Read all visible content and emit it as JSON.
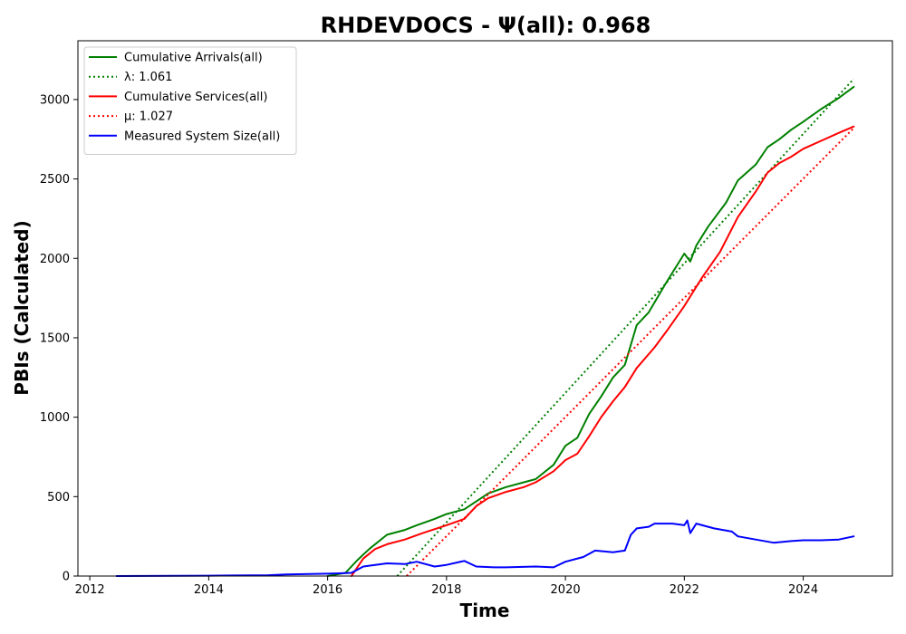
{
  "chart_data": {
    "type": "line",
    "title": "RHDEVDOCS -  Ψ(all): 0.968",
    "xlabel": "Time",
    "ylabel": "PBIs (Calculated)",
    "xlim": [
      2011.8,
      2025.5
    ],
    "ylim": [
      0,
      3370
    ],
    "xticks": [
      2012,
      2014,
      2016,
      2018,
      2020,
      2022,
      2024
    ],
    "xtick_labels": [
      "2012",
      "2014",
      "2016",
      "2018",
      "2020",
      "2022",
      "2024"
    ],
    "yticks": [
      0,
      500,
      1000,
      1500,
      2000,
      2500,
      3000
    ],
    "ytick_labels": [
      "0",
      "500",
      "1000",
      "1500",
      "2000",
      "2500",
      "3000"
    ],
    "grid": false,
    "legend_position": "top-left",
    "series": [
      {
        "name": "Cumulative Arrivals(all)",
        "color": "#008000",
        "style": "solid",
        "x": [
          2016.0,
          2016.3,
          2016.5,
          2016.7,
          2017.0,
          2017.3,
          2017.5,
          2017.8,
          2018.0,
          2018.3,
          2018.5,
          2018.7,
          2019.0,
          2019.3,
          2019.5,
          2019.8,
          2020.0,
          2020.2,
          2020.4,
          2020.6,
          2020.8,
          2021.0,
          2021.2,
          2021.4,
          2021.7,
          2022.0,
          2022.1,
          2022.2,
          2022.4,
          2022.7,
          2022.9,
          2023.2,
          2023.4,
          2023.6,
          2023.8,
          2024.0,
          2024.3,
          2024.6,
          2024.85
        ],
        "values": [
          0,
          20,
          100,
          170,
          260,
          290,
          320,
          360,
          390,
          420,
          470,
          520,
          560,
          590,
          610,
          700,
          820,
          870,
          1020,
          1130,
          1250,
          1330,
          1580,
          1660,
          1850,
          2030,
          1980,
          2080,
          2200,
          2350,
          2490,
          2590,
          2700,
          2750,
          2810,
          2860,
          2940,
          3010,
          3080
        ]
      },
      {
        "name": "λ: 1.061",
        "color": "#008000",
        "style": "dotted",
        "x": [
          2017.17,
          2024.85
        ],
        "values": [
          0,
          3130
        ]
      },
      {
        "name": "Cumulative Services(all)",
        "color": "#ff0000",
        "style": "solid",
        "x": [
          2016.4,
          2016.6,
          2016.8,
          2017.0,
          2017.3,
          2017.6,
          2018.0,
          2018.3,
          2018.5,
          2018.7,
          2019.0,
          2019.3,
          2019.5,
          2019.8,
          2020.0,
          2020.2,
          2020.4,
          2020.6,
          2020.8,
          2021.0,
          2021.2,
          2021.5,
          2021.7,
          2022.0,
          2022.3,
          2022.6,
          2022.9,
          2023.2,
          2023.4,
          2023.6,
          2023.8,
          2024.0,
          2024.3,
          2024.6,
          2024.85
        ],
        "values": [
          0,
          110,
          170,
          200,
          230,
          270,
          320,
          360,
          440,
          490,
          530,
          560,
          590,
          660,
          730,
          770,
          880,
          1000,
          1100,
          1190,
          1310,
          1440,
          1540,
          1700,
          1880,
          2040,
          2260,
          2420,
          2540,
          2600,
          2640,
          2690,
          2740,
          2790,
          2830
        ]
      },
      {
        "name": "μ: 1.027",
        "color": "#ff0000",
        "style": "dotted",
        "x": [
          2017.33,
          2024.85
        ],
        "values": [
          0,
          2820
        ]
      },
      {
        "name": "Measured System Size(all)",
        "color": "#0000ff",
        "style": "solid",
        "x": [
          2012.45,
          2014.0,
          2015.0,
          2015.3,
          2016.0,
          2016.4,
          2016.6,
          2017.0,
          2017.3,
          2017.5,
          2017.8,
          2018.0,
          2018.3,
          2018.5,
          2018.8,
          2019.0,
          2019.5,
          2019.8,
          2020.0,
          2020.3,
          2020.5,
          2020.8,
          2021.0,
          2021.1,
          2021.2,
          2021.4,
          2021.5,
          2021.8,
          2022.0,
          2022.05,
          2022.1,
          2022.2,
          2022.5,
          2022.8,
          2022.9,
          2023.2,
          2023.5,
          2023.8,
          2024.0,
          2024.3,
          2024.6,
          2024.85
        ],
        "values": [
          0,
          2,
          5,
          10,
          15,
          20,
          60,
          80,
          75,
          90,
          60,
          70,
          95,
          60,
          55,
          55,
          60,
          55,
          90,
          120,
          160,
          150,
          160,
          260,
          300,
          310,
          330,
          330,
          320,
          350,
          270,
          330,
          300,
          280,
          250,
          230,
          210,
          220,
          225,
          225,
          230,
          250
        ]
      }
    ]
  }
}
